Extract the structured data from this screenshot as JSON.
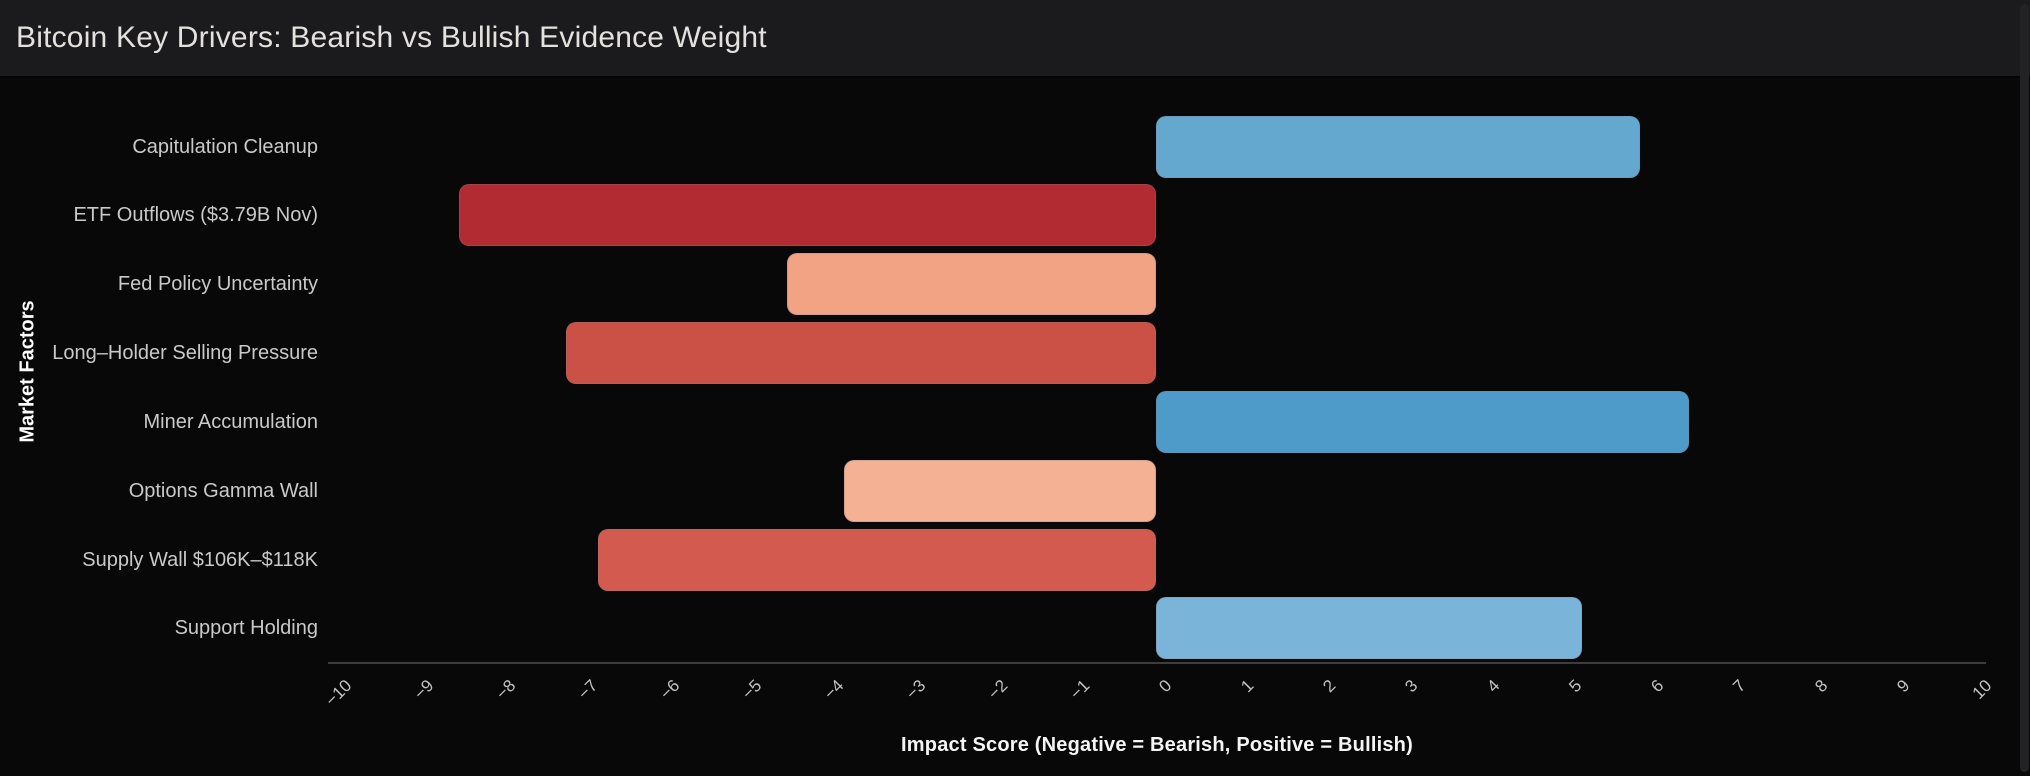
{
  "header": {
    "title": "Bitcoin Key Drivers: Bearish vs Bullish Evidence Weight"
  },
  "chart_data": {
    "type": "bar",
    "orientation": "horizontal",
    "title": "Bitcoin Key Drivers: Bearish vs Bullish Evidence Weight",
    "xlabel": "Impact Score (Negative = Bearish, Positive = Bullish)",
    "ylabel": "Market Factors",
    "xlim": [
      -10,
      10
    ],
    "xticks": [
      -10,
      -9,
      -8,
      -7,
      -6,
      -5,
      -4,
      -3,
      -2,
      -1,
      0,
      1,
      2,
      3,
      4,
      5,
      6,
      7,
      8,
      9,
      10
    ],
    "xtick_rotation_deg": 45,
    "grid": false,
    "legend": "none",
    "background_color": "#080808",
    "header_color": "#1b1b1d",
    "categories": [
      "Capitulation Cleanup",
      "ETF Outflows ($3.79B Nov)",
      "Fed Policy Uncertainty",
      "Long–Holder Selling Pressure",
      "Miner Accumulation",
      "Options Gamma Wall",
      "Supply Wall $106K–$118K",
      "Support Holding"
    ],
    "values": [
      5.9,
      -8.5,
      -4.5,
      -7.2,
      6.5,
      -3.8,
      -6.8,
      5.2
    ],
    "bar_colors": [
      "#64a8d0",
      "#b22b33",
      "#f1a383",
      "#cb5147",
      "#4e9ac8",
      "#f4b194",
      "#d25a4e",
      "#7ab5d9"
    ],
    "color_scheme": "RdBu diverging: negative = bearish (reds), positive = bullish (blues)"
  }
}
